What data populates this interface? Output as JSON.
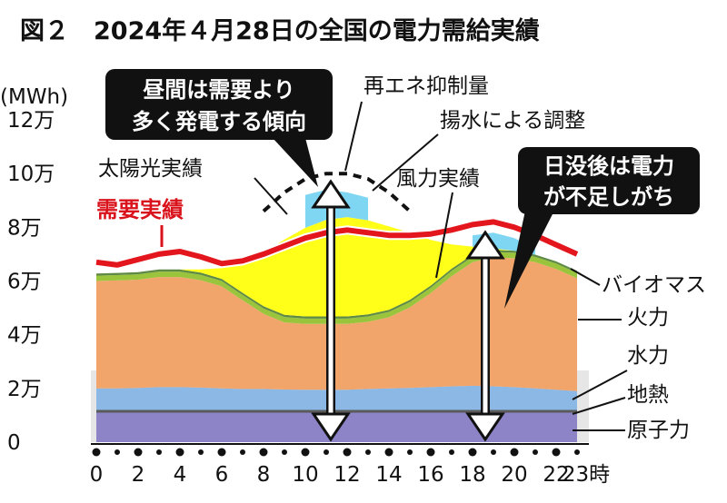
{
  "chart_data": {
    "type": "area",
    "title": "図２　2024年４月28日の全国の電力需給実績",
    "unit": "(MWh)",
    "x_labels": [
      "0",
      "2",
      "4",
      "6",
      "8",
      "10",
      "12",
      "14",
      "16",
      "18",
      "20",
      "22",
      "23時"
    ],
    "y_labels": [
      "0",
      "2万",
      "4万",
      "6万",
      "8万",
      "10万",
      "12万"
    ],
    "ylim": [
      0,
      120000
    ],
    "x": [
      0,
      1,
      2,
      3,
      4,
      5,
      6,
      7,
      8,
      9,
      10,
      11,
      12,
      13,
      14,
      15,
      16,
      17,
      18,
      19,
      20,
      21,
      22,
      23
    ],
    "series": [
      {
        "name": "原子力",
        "values": [
          11000,
          11000,
          11000,
          11000,
          11000,
          11000,
          11000,
          11000,
          11000,
          11000,
          11000,
          11000,
          11000,
          11000,
          11000,
          11000,
          11000,
          11000,
          11000,
          11000,
          11000,
          11000,
          11000,
          11000
        ]
      },
      {
        "name": "地熱",
        "values": [
          1000,
          1000,
          1000,
          1000,
          1000,
          1000,
          1000,
          1000,
          1000,
          1000,
          1000,
          1000,
          1000,
          1000,
          1000,
          1000,
          1000,
          1000,
          1000,
          1000,
          1000,
          1000,
          1000,
          1000
        ]
      },
      {
        "name": "水力",
        "values": [
          8000,
          8000,
          8200,
          8500,
          8500,
          8300,
          8000,
          7800,
          7800,
          7600,
          7500,
          7500,
          7500,
          7800,
          8000,
          8200,
          8500,
          8800,
          9000,
          8800,
          8500,
          8000,
          7500,
          7000
        ]
      },
      {
        "name": "火力",
        "values": [
          40000,
          40200,
          40300,
          41000,
          41000,
          40000,
          38000,
          33000,
          28000,
          25000,
          24500,
          24500,
          24500,
          25000,
          26500,
          30000,
          35000,
          41000,
          46000,
          48000,
          48000,
          47000,
          45000,
          42000
        ]
      },
      {
        "name": "バイオマス",
        "values": [
          2000,
          2000,
          2000,
          2000,
          2000,
          2000,
          2000,
          2000,
          2000,
          2000,
          2000,
          2000,
          2000,
          2000,
          2000,
          2000,
          2000,
          2000,
          2000,
          2000,
          2000,
          2000,
          2000,
          2000
        ]
      },
      {
        "name": "風力実績",
        "values": [
          800,
          800,
          800,
          800,
          800,
          800,
          800,
          800,
          800,
          800,
          800,
          800,
          800,
          800,
          800,
          800,
          800,
          800,
          800,
          800,
          800,
          800,
          800,
          800
        ]
      },
      {
        "name": "太陽光実績",
        "values": [
          0,
          0,
          0,
          0,
          0,
          1200,
          4000,
          11000,
          20000,
          28000,
          33000,
          36000,
          37000,
          35000,
          31000,
          25000,
          17000,
          9000,
          3000,
          500,
          0,
          0,
          0,
          0
        ]
      }
    ],
    "demand": {
      "name": "需要実績",
      "values": [
        67000,
        66000,
        68000,
        70000,
        71000,
        69000,
        66500,
        67500,
        70000,
        73000,
        76000,
        78000,
        79000,
        78000,
        77000,
        77000,
        77500,
        79000,
        81000,
        82000,
        80000,
        77000,
        73500,
        70000
      ]
    },
    "potential": {
      "name": "再エネ抑制量",
      "values": [
        null,
        null,
        null,
        null,
        null,
        null,
        null,
        null,
        86000,
        93000,
        98000,
        100000,
        100000,
        98000,
        93000,
        86000,
        null,
        null,
        null,
        null,
        null,
        null,
        null,
        null
      ]
    },
    "pumped_storage": {
      "name": "揚水による調整",
      "values": [
        null,
        null,
        null,
        null,
        null,
        null,
        null,
        null,
        null,
        null,
        92000,
        94000,
        93000,
        91000,
        null,
        null,
        null,
        null,
        null,
        null,
        null,
        null,
        null,
        null
      ]
    },
    "pumped_storage_evening": {
      "name": "揚水による調整",
      "values": [
        null,
        null,
        null,
        null,
        null,
        null,
        null,
        null,
        null,
        null,
        null,
        null,
        null,
        null,
        null,
        null,
        null,
        null,
        77000,
        78000,
        76000,
        72000,
        null,
        null
      ]
    },
    "callouts": [
      "昼間は需要より",
      "多く発電する傾向",
      "日没後は電力",
      "が不足しがち"
    ],
    "colors": {
      "nuclear": "#8c84c6",
      "geothermal": "#5a5a5a",
      "hydro": "#8cb8e6",
      "thermal": "#f2a56a",
      "biomass": "#9ac43c",
      "wind": "#5f8a45",
      "solar": "#ffff1a",
      "pumped": "#7fd6f2",
      "demand": "#e3161d",
      "bg": "#e6e6e6"
    }
  }
}
